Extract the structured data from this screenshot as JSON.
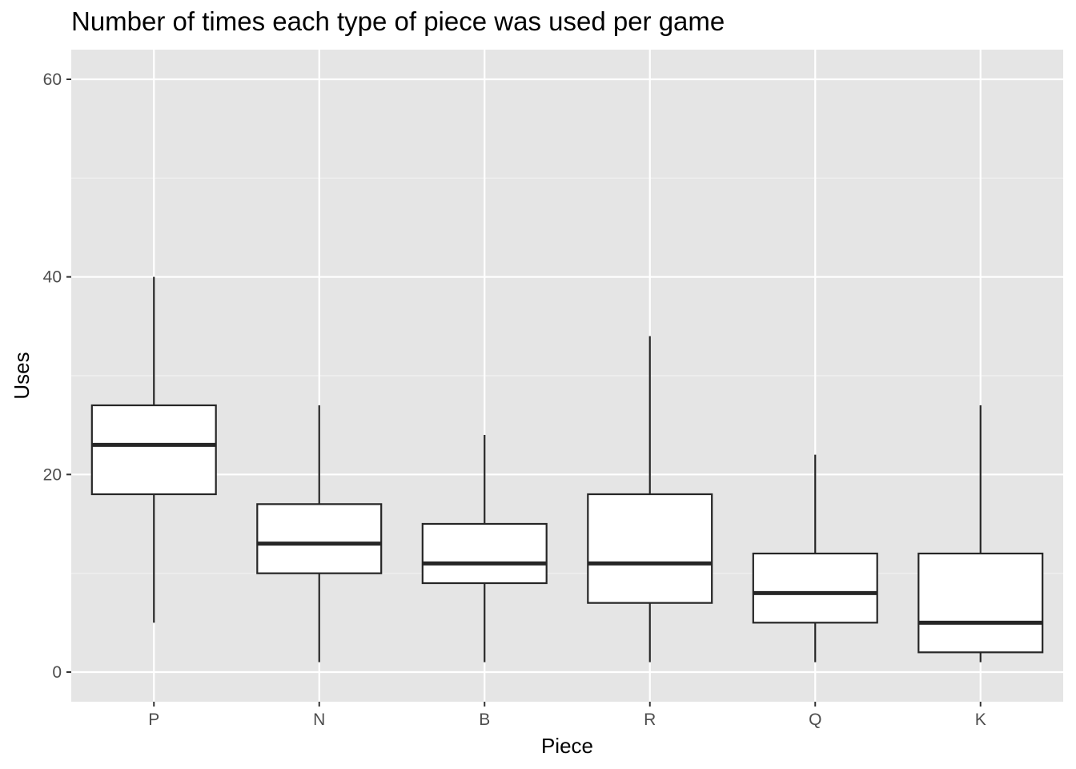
{
  "chart_data": {
    "type": "boxplot",
    "title": "Number of times each type of piece was used per game",
    "xlabel": "Piece",
    "ylabel": "Uses",
    "categories": [
      "P",
      "N",
      "B",
      "R",
      "Q",
      "K"
    ],
    "boxes": [
      {
        "category": "P",
        "min": 5,
        "q1": 18,
        "median": 23,
        "q3": 27,
        "max": 40
      },
      {
        "category": "N",
        "min": 1,
        "q1": 10,
        "median": 13,
        "q3": 17,
        "max": 27
      },
      {
        "category": "B",
        "min": 1,
        "q1": 9,
        "median": 11,
        "q3": 15,
        "max": 24
      },
      {
        "category": "R",
        "min": 1,
        "q1": 7,
        "median": 11,
        "q3": 18,
        "max": 34
      },
      {
        "category": "Q",
        "min": 1,
        "q1": 5,
        "median": 8,
        "q3": 12,
        "max": 22
      },
      {
        "category": "K",
        "min": 1,
        "q1": 2,
        "median": 5,
        "q3": 12,
        "max": 27
      }
    ],
    "y_ticks": [
      0,
      20,
      40,
      60
    ],
    "y_tick_labels": [
      "0",
      "20",
      "40",
      "60"
    ],
    "ylim": [
      -3,
      63
    ],
    "grid": true,
    "colors": {
      "panel_background": "#e5e5e5",
      "grid_major": "#ffffff",
      "grid_minor": "#f2f2f2",
      "box_fill": "#ffffff",
      "box_stroke": "#262626",
      "tick_text": "#4d4d4d"
    }
  }
}
